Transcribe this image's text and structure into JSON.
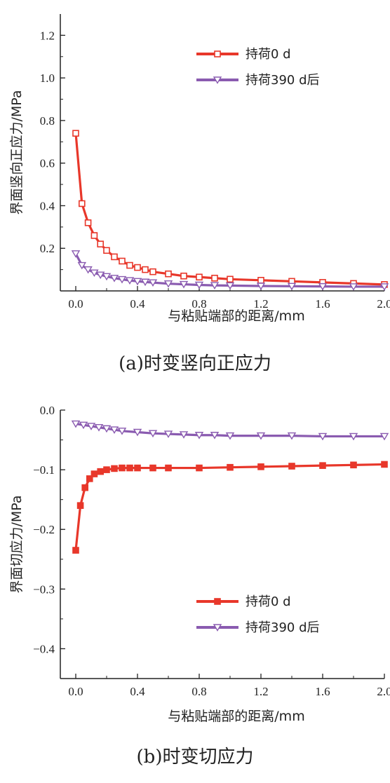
{
  "chart_data": [
    {
      "type": "line",
      "caption": "(a)时变竖向正应力",
      "xlabel": "与粘贴端部的距离/mm",
      "ylabel": "界面竖向正应力/MPa",
      "xlim": [
        -0.1,
        2.0
      ],
      "ylim": [
        0.0,
        1.3
      ],
      "xticks": [
        "0.0",
        "0.4",
        "0.8",
        "1.2",
        "1.6",
        "2.0"
      ],
      "xtick_values": [
        0.0,
        0.4,
        0.8,
        1.2,
        1.6,
        2.0
      ],
      "yticks": [
        "0.2",
        "0.4",
        "0.6",
        "0.8",
        "1.0",
        "1.2"
      ],
      "ytick_values": [
        0.2,
        0.4,
        0.6,
        0.8,
        1.0,
        1.2
      ],
      "legend_position": "top-right",
      "series": [
        {
          "name": "持荷0 d",
          "color": "#e8372a",
          "marker": "square",
          "x": [
            0.0,
            0.04,
            0.08,
            0.12,
            0.16,
            0.2,
            0.25,
            0.3,
            0.35,
            0.4,
            0.45,
            0.5,
            0.6,
            0.7,
            0.8,
            0.9,
            1.0,
            1.2,
            1.4,
            1.6,
            1.8,
            2.0
          ],
          "y": [
            0.74,
            0.41,
            0.32,
            0.26,
            0.22,
            0.19,
            0.16,
            0.14,
            0.12,
            0.11,
            0.1,
            0.09,
            0.08,
            0.07,
            0.065,
            0.06,
            0.055,
            0.05,
            0.045,
            0.04,
            0.035,
            0.03
          ]
        },
        {
          "name": "持荷390 d后",
          "color": "#8a5bb0",
          "marker": "triangle-down",
          "x": [
            0.0,
            0.04,
            0.08,
            0.12,
            0.16,
            0.2,
            0.25,
            0.3,
            0.35,
            0.4,
            0.45,
            0.5,
            0.6,
            0.7,
            0.8,
            0.9,
            1.0,
            1.2,
            1.4,
            1.6,
            1.8,
            2.0
          ],
          "y": [
            0.175,
            0.12,
            0.1,
            0.085,
            0.075,
            0.068,
            0.06,
            0.054,
            0.049,
            0.045,
            0.042,
            0.039,
            0.034,
            0.031,
            0.028,
            0.026,
            0.025,
            0.023,
            0.022,
            0.021,
            0.02,
            0.02
          ]
        }
      ]
    },
    {
      "type": "line",
      "caption": "(b)时变切应力",
      "xlabel": "与粘贴端部的距离/mm",
      "ylabel": "界面切应力/MPa",
      "xlim": [
        -0.1,
        2.0
      ],
      "ylim": [
        -0.45,
        0.0
      ],
      "xticks": [
        "0.0",
        "0.4",
        "0.8",
        "1.2",
        "1.6",
        "2.0"
      ],
      "xtick_values": [
        0.0,
        0.4,
        0.8,
        1.2,
        1.6,
        2.0
      ],
      "yticks": [
        "0.0",
        "−0.1",
        "−0.2",
        "−0.3",
        "−0.4"
      ],
      "ytick_values": [
        0.0,
        -0.1,
        -0.2,
        -0.3,
        -0.4
      ],
      "legend_position": "bottom-right",
      "series": [
        {
          "name": "持荷0 d",
          "color": "#e8372a",
          "marker": "square",
          "x": [
            0.0,
            0.03,
            0.06,
            0.09,
            0.12,
            0.16,
            0.2,
            0.25,
            0.3,
            0.35,
            0.4,
            0.5,
            0.6,
            0.8,
            1.0,
            1.2,
            1.4,
            1.6,
            1.8,
            2.0
          ],
          "y": [
            -0.235,
            -0.16,
            -0.13,
            -0.115,
            -0.107,
            -0.103,
            -0.1,
            -0.098,
            -0.097,
            -0.097,
            -0.097,
            -0.097,
            -0.097,
            -0.097,
            -0.096,
            -0.095,
            -0.094,
            -0.093,
            -0.092,
            -0.091
          ],
          "filled_markers": true
        },
        {
          "name": "持荷390 d后",
          "color": "#8a5bb0",
          "marker": "triangle-down",
          "x": [
            0.0,
            0.05,
            0.1,
            0.15,
            0.2,
            0.25,
            0.3,
            0.4,
            0.5,
            0.6,
            0.7,
            0.8,
            0.9,
            1.0,
            1.2,
            1.4,
            1.6,
            1.8,
            2.0
          ],
          "y": [
            -0.023,
            -0.025,
            -0.027,
            -0.029,
            -0.031,
            -0.033,
            -0.035,
            -0.037,
            -0.039,
            -0.04,
            -0.041,
            -0.042,
            -0.042,
            -0.043,
            -0.043,
            -0.043,
            -0.044,
            -0.044,
            -0.044
          ]
        }
      ]
    }
  ]
}
